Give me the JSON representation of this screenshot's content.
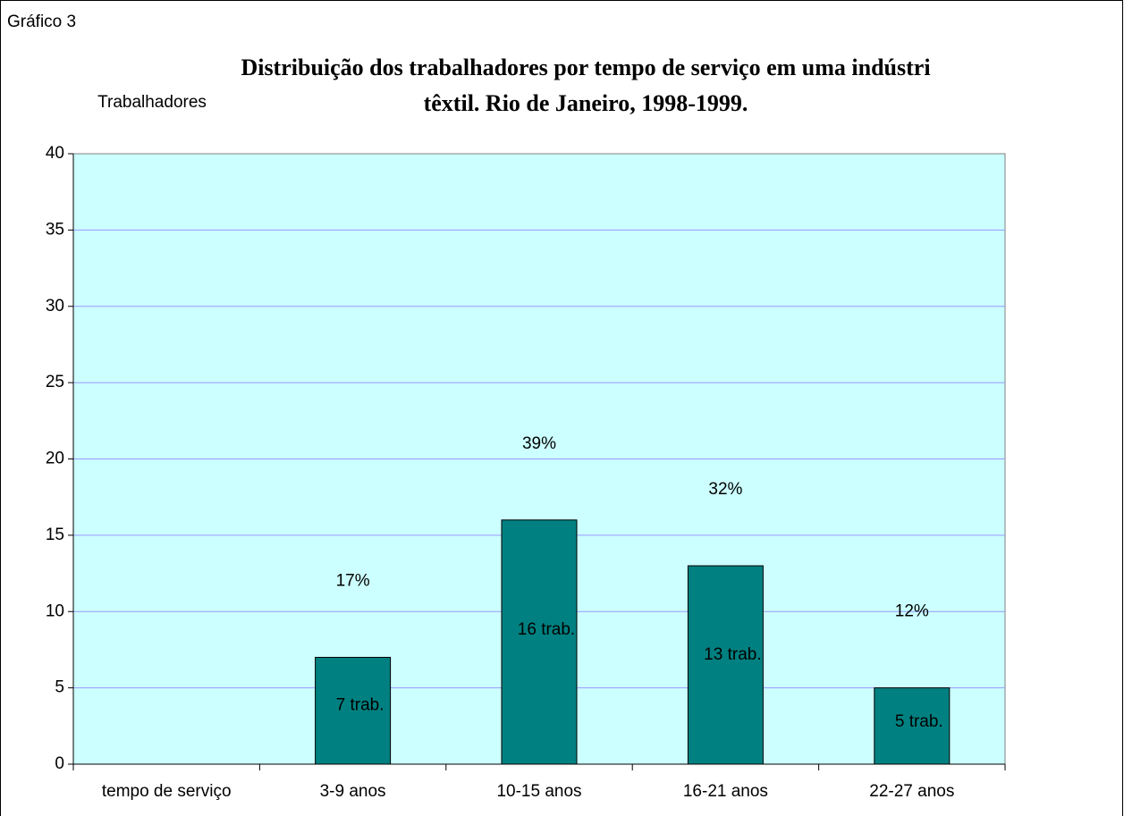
{
  "chart_data": {
    "type": "bar",
    "chart_label": "Gráfico 3",
    "title": [
      "Distribuição dos trabalhadores por tempo de serviço em uma indústri",
      "têxtil. Rio de Janeiro, 1998-1999."
    ],
    "ylabel": "Trabalhadores",
    "categories": [
      "tempo de serviço",
      "3-9 anos",
      "10-15 anos",
      "16-21 anos",
      "22-27 anos"
    ],
    "values": [
      null,
      7,
      16,
      13,
      5
    ],
    "value_labels": [
      null,
      "7 trab.",
      "16 trab.",
      "13 trab.",
      "5 trab."
    ],
    "percent_labels": [
      null,
      "17%",
      "39%",
      "32%",
      "12%"
    ],
    "color": "#008080",
    "ylim": [
      0,
      40
    ],
    "yticks": [
      0,
      5,
      10,
      15,
      20,
      25,
      30,
      35,
      40
    ],
    "grid": true
  }
}
